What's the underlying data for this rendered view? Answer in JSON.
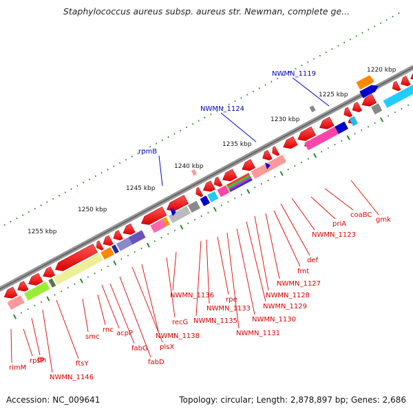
{
  "title": "Staphylococcus aureus subsp. aureus str. Newman, complete ge...",
  "footer": {
    "accession": "Accession: NC_009641",
    "info": "Topology: circular; Length: 2,878,897 bp; Genes: 2,686"
  },
  "scale_labels": [
    "1220 kbp",
    "1225 kbp",
    "1230 kbp",
    "1235 kbp",
    "1240 kbp",
    "1245 kbp",
    "1250 kbp",
    "1255 kbp"
  ],
  "highlighted_genes": [
    "NWMN_1119",
    "NWMN_1124",
    "rpmB"
  ],
  "gene_labels": [
    "gmk",
    "coaBC",
    "priA",
    "NWMN_1123",
    "def",
    "fmt",
    "NWMN_1127",
    "NWMN_1128",
    "NWMN_1129",
    "NWMN_1130",
    "NWMN_1131",
    "rpe",
    "NWMN_1133",
    "NWMN_1135",
    "NWMN_1136",
    "recG",
    "NWMN_1138",
    "plsX",
    "fabD",
    "fabG",
    "acpP",
    "rnc",
    "smc",
    "ftsY",
    "NWMN_1146",
    "ffh",
    "rpsP",
    "rimM"
  ],
  "colors": {
    "gene_red": "#ee0000",
    "label_red": "#dd0000",
    "highlight_blue": "#0000cc",
    "backbone": "#777777",
    "tick_green": "#228822"
  }
}
